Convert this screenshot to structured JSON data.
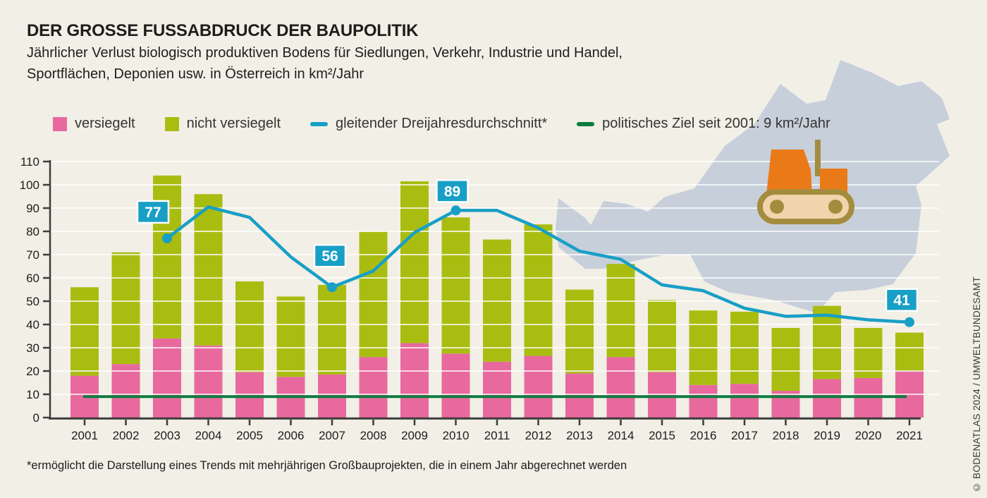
{
  "header": {
    "title": "DER GROSSE FUSSABDRUCK DER BAUPOLITIK",
    "subtitle_line1": "Jährlicher Verlust biologisch produktiven Bodens für Siedlungen, Verkehr, Industrie und Handel,",
    "subtitle_line2": "Sportflächen, Deponien usw. in Österreich in km²/Jahr"
  },
  "legend": [
    {
      "label": "versiegelt",
      "type": "square",
      "color": "#e8699e"
    },
    {
      "label": "nicht versiegelt",
      "type": "square",
      "color": "#a9bd11"
    },
    {
      "label": "gleitender Dreijahresdurchschnitt*",
      "type": "line",
      "color": "#189fc6"
    },
    {
      "label": "politisches Ziel seit 2001: 9 km²/Jahr",
      "type": "line",
      "color": "#0c7b3e"
    }
  ],
  "chart_data": {
    "type": "bar",
    "stacked": true,
    "grid": true,
    "ylim": [
      0,
      110
    ],
    "ytick_step": 10,
    "categories": [
      "2001",
      "2002",
      "2003",
      "2004",
      "2005",
      "2006",
      "2007",
      "2008",
      "2009",
      "2010",
      "2011",
      "2012",
      "2013",
      "2014",
      "2015",
      "2016",
      "2017",
      "2018",
      "2019",
      "2020",
      "2021"
    ],
    "series": [
      {
        "name": "versiegelt",
        "color": "#e8699e",
        "values": [
          18,
          23,
          34,
          31,
          19.5,
          17.5,
          18.5,
          26,
          32,
          27.5,
          24,
          26.5,
          19,
          26,
          19.5,
          14,
          14.5,
          11.5,
          16.5,
          17,
          20
        ]
      },
      {
        "name": "nicht versiegelt",
        "color": "#a9bd11",
        "values": [
          38,
          48,
          70,
          65,
          39,
          34.5,
          38.5,
          54,
          69.5,
          58.5,
          52.5,
          56.5,
          36,
          40,
          31,
          32,
          31,
          27,
          31.5,
          21.5,
          16.5
        ]
      }
    ],
    "line_series": {
      "name": "gleitender Dreijahresdurchschnitt",
      "color": "#189fc6",
      "start_year": "2003",
      "values": [
        77,
        90.5,
        86,
        69,
        56,
        63,
        79.5,
        89,
        89,
        81.5,
        71.5,
        68,
        57,
        54.5,
        47,
        43.5,
        44,
        42,
        41
      ]
    },
    "target_line": {
      "label": "politisches Ziel seit 2001",
      "value": 9,
      "color": "#0c7b3e"
    },
    "annotations": [
      {
        "year": "2003",
        "value": 77
      },
      {
        "year": "2007",
        "value": 56
      },
      {
        "year": "2010",
        "value": 89
      },
      {
        "year": "2021",
        "value": 41
      }
    ]
  },
  "footnote": "*ermöglicht die Darstellung eines Trends mit mehrjährigen Großbauprojekten, die in einem Jahr abgerechnet werden",
  "credit": "© BODENATLAS 2024 / UMWELTBUNDESAMT",
  "colors": {
    "background": "#f2efe6",
    "text": "#1d1d1b",
    "axis": "#3d3d3b",
    "grid": "#ffffff",
    "map_gray": "#c6cfda",
    "excavator_orange": "#ea7a18",
    "excavator_track_fill": "#f0d4ab",
    "excavator_khaki": "#a48c3e",
    "callout_fill": "#189fc6",
    "callout_text": "#ffffff"
  }
}
